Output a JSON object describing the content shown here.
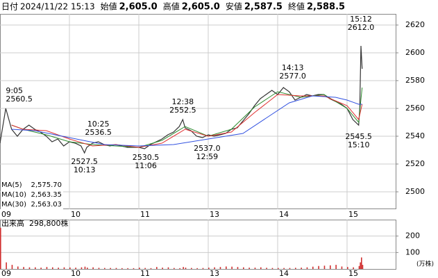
{
  "header": {
    "items": [
      {
        "label": "日付",
        "value": "2024/11/22 15:13"
      },
      {
        "label": "始値",
        "value": "2,605.0"
      },
      {
        "label": "高値",
        "value": "2,605.0"
      },
      {
        "label": "安値",
        "value": "2,587.5"
      },
      {
        "label": "終値",
        "value": "2,588.5"
      }
    ]
  },
  "chart_data": [
    {
      "type": "line",
      "xlim": [
        0,
        342
      ],
      "xticks": [
        {
          "value": 0,
          "label": "09"
        },
        {
          "value": 60,
          "label": "10"
        },
        {
          "value": 120,
          "label": "11"
        },
        {
          "value": 180,
          "label": "13"
        },
        {
          "value": 240,
          "label": "14"
        },
        {
          "value": 300,
          "label": "15"
        }
      ],
      "ylim": [
        2487.5,
        2628
      ],
      "yticks": [
        2500,
        2520,
        2540,
        2560,
        2580,
        2600,
        2620
      ],
      "grid": true,
      "series": [
        {
          "color": "#333333",
          "x": [
            0,
            5,
            10,
            15,
            20,
            25,
            30,
            35,
            40,
            45,
            50,
            55,
            60,
            65,
            70,
            73,
            75,
            80,
            85,
            90,
            95,
            100,
            105,
            110,
            115,
            120,
            125,
            130,
            135,
            140,
            145,
            150,
            155,
            158,
            160,
            165,
            170,
            175,
            180,
            185,
            190,
            195,
            200,
            205,
            210,
            215,
            220,
            225,
            230,
            235,
            240,
            245,
            250,
            255,
            260,
            265,
            270,
            275,
            280,
            285,
            290,
            295,
            300,
            305,
            310,
            311,
            312,
            313
          ],
          "values": [
            2535,
            2560,
            2545,
            2540,
            2545,
            2548,
            2545,
            2543,
            2540,
            2536,
            2538,
            2533,
            2536,
            2535,
            2533,
            2528,
            2532,
            2535,
            2536,
            2534,
            2533,
            2534,
            2533,
            2532,
            2532,
            2532,
            2531,
            2534,
            2536,
            2538,
            2541,
            2543,
            2547,
            2552,
            2546,
            2544,
            2540,
            2539,
            2541,
            2540,
            2541,
            2542,
            2545,
            2546,
            2551,
            2556,
            2562,
            2567,
            2570,
            2573,
            2570,
            2575,
            2572,
            2566,
            2568,
            2570,
            2569,
            2570,
            2570,
            2567,
            2565,
            2563,
            2560,
            2552,
            2548,
            2560,
            2605,
            2588.5
          ]
        },
        {
          "name": "MA(5)",
          "value_label": "2,575.70",
          "color": "#2e8b2e",
          "x": [
            10,
            20,
            40,
            60,
            80,
            100,
            120,
            140,
            160,
            180,
            200,
            220,
            240,
            260,
            280,
            300,
            310,
            313
          ],
          "values": [
            2548,
            2545,
            2541,
            2536,
            2534,
            2533,
            2532,
            2537,
            2547,
            2540,
            2545,
            2561,
            2572,
            2568,
            2570,
            2560,
            2550,
            2575
          ]
        },
        {
          "name": "MA(10)",
          "value_label": "2,563.35",
          "color": "#e03030",
          "x": [
            10,
            20,
            40,
            60,
            80,
            100,
            120,
            140,
            160,
            180,
            200,
            220,
            240,
            260,
            280,
            300,
            310,
            313
          ],
          "values": [
            2548,
            2545,
            2544,
            2538,
            2533,
            2534,
            2532,
            2535,
            2545,
            2540,
            2543,
            2557,
            2570,
            2569,
            2569,
            2562,
            2552,
            2563
          ]
        },
        {
          "name": "MA(30)",
          "value_label": "2,563.03",
          "color": "#3050e0",
          "x": [
            10,
            30,
            60,
            90,
            120,
            150,
            180,
            210,
            230,
            250,
            270,
            290,
            300,
            310,
            313
          ],
          "values": [
            2545,
            2544,
            2539,
            2534,
            2533,
            2534,
            2538,
            2542,
            2553,
            2564,
            2569,
            2568,
            2566,
            2563,
            2563
          ]
        }
      ],
      "annotations": [
        {
          "time": "9:05",
          "x": 5,
          "price": 2560.5,
          "price_label": "2560.5",
          "position": "above"
        },
        {
          "time": "10:25",
          "x": 85,
          "price": 2536.5,
          "price_label": "2536.5",
          "position": "above"
        },
        {
          "time": "10:13",
          "x": 73,
          "price": 2527.5,
          "price_label": "2527.5",
          "position": "below"
        },
        {
          "time": "12:38",
          "x": 158,
          "price": 2552.5,
          "price_label": "2552.5",
          "position": "above"
        },
        {
          "time": "11:06",
          "x": 126,
          "price": 2530.5,
          "price_label": "2530.5",
          "position": "below"
        },
        {
          "time": "12:59",
          "x": 179,
          "price": 2537.0,
          "price_label": "2537.0",
          "position": "below"
        },
        {
          "time": "14:13",
          "x": 253,
          "price": 2577.0,
          "price_label": "2577.0",
          "position": "above"
        },
        {
          "time": "15:12",
          "x": 312,
          "price": 2612.0,
          "price_label": "2612.0",
          "position": "above"
        },
        {
          "time": "15:10",
          "x": 310,
          "price": 2545.5,
          "price_label": "2545.5",
          "position": "below"
        }
      ]
    },
    {
      "type": "bar",
      "title": "出来高",
      "total_label": "298,800株",
      "unit_label": "(万株)",
      "color": "#d03030",
      "xlim": [
        0,
        342
      ],
      "xticks": [
        {
          "value": 0,
          "label": "09"
        },
        {
          "value": 60,
          "label": "10"
        },
        {
          "value": 120,
          "label": "11"
        },
        {
          "value": 180,
          "label": "13"
        },
        {
          "value": 240,
          "label": "14"
        },
        {
          "value": 300,
          "label": "15"
        }
      ],
      "ylim": [
        0,
        300
      ],
      "yticks": [
        100,
        200
      ],
      "grid": true,
      "x": [
        0,
        5,
        10,
        15,
        20,
        25,
        30,
        35,
        40,
        45,
        50,
        55,
        60,
        65,
        70,
        73,
        75,
        80,
        85,
        90,
        95,
        100,
        105,
        110,
        115,
        120,
        125,
        130,
        135,
        140,
        145,
        150,
        155,
        158,
        160,
        165,
        170,
        175,
        180,
        185,
        190,
        195,
        200,
        205,
        210,
        215,
        220,
        225,
        230,
        235,
        240,
        245,
        250,
        255,
        260,
        265,
        270,
        275,
        280,
        285,
        290,
        295,
        300,
        305,
        310,
        311,
        312,
        313
      ],
      "values": [
        250,
        40,
        25,
        15,
        12,
        10,
        10,
        8,
        12,
        10,
        8,
        10,
        9,
        8,
        10,
        14,
        8,
        10,
        7,
        6,
        6,
        6,
        5,
        5,
        5,
        8,
        6,
        5,
        12,
        8,
        10,
        6,
        5,
        12,
        8,
        6,
        5,
        6,
        8,
        10,
        12,
        15,
        14,
        12,
        10,
        8,
        8,
        10,
        7,
        6,
        6,
        6,
        6,
        7,
        8,
        10,
        14,
        18,
        20,
        22,
        25,
        15,
        12,
        10,
        18,
        40,
        70,
        25
      ]
    }
  ]
}
